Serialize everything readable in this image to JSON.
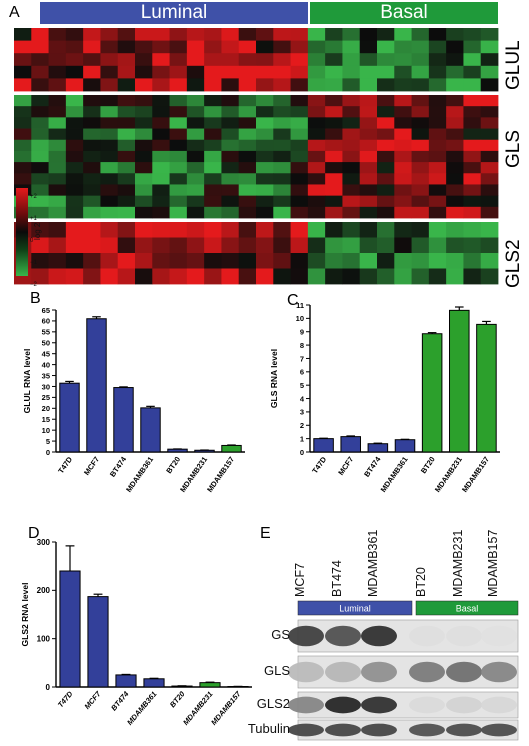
{
  "panels": {
    "a": "A",
    "b": "B",
    "c": "C",
    "d": "D",
    "e": "E"
  },
  "heatmap": {
    "groups": [
      {
        "label": "Luminal",
        "color": "#3f51a8"
      },
      {
        "label": "Basal",
        "color": "#1f9a3a"
      }
    ],
    "genes": [
      "GLUL",
      "GLS",
      "GLS2"
    ],
    "colorbar": {
      "title": "log 2",
      "ticks": [
        "+2",
        "+1",
        "0",
        "−1",
        "−2"
      ],
      "colors": {
        "high": "#e41a1c",
        "mid": "#0a0a0a",
        "low": "#39b54a"
      }
    }
  },
  "chart_data": [
    {
      "type": "bar",
      "panel": "B",
      "categories": [
        "T47D",
        "MCF7",
        "BT474",
        "MDAMB361",
        "BT20",
        "MDAMB231",
        "MDAMB157"
      ],
      "values": [
        31.5,
        61,
        29.5,
        20.2,
        1.3,
        0.8,
        3.0
      ],
      "errors": [
        0.8,
        0.9,
        0.3,
        0.7,
        0.1,
        0.1,
        0.2
      ],
      "colors": [
        "#33409a",
        "#33409a",
        "#33409a",
        "#33409a",
        "#33409a",
        "#33409a",
        "#2ca02c"
      ],
      "ylabel": "GLUL RNA level",
      "ylim": [
        0,
        65
      ],
      "yticks": [
        0,
        5,
        10,
        15,
        20,
        25,
        30,
        35,
        40,
        45,
        50,
        55,
        60,
        65
      ]
    },
    {
      "type": "bar",
      "panel": "C",
      "categories": [
        "T47D",
        "MCF7",
        "BT474",
        "MDAMB361",
        "BT20",
        "MDAMB231",
        "MDAMB157"
      ],
      "values": [
        1.0,
        1.15,
        0.62,
        0.92,
        8.85,
        10.6,
        9.55
      ],
      "errors": [
        0.03,
        0.05,
        0.04,
        0.03,
        0.08,
        0.25,
        0.22
      ],
      "colors": [
        "#33409a",
        "#33409a",
        "#33409a",
        "#33409a",
        "#2ca02c",
        "#2ca02c",
        "#2ca02c"
      ],
      "ylabel": "GLS RNA level",
      "ylim": [
        0,
        11
      ],
      "yticks": [
        0,
        1,
        2,
        3,
        4,
        5,
        6,
        7,
        8,
        9,
        10,
        11
      ]
    },
    {
      "type": "bar",
      "panel": "D",
      "categories": [
        "T47D",
        "MCF7",
        "BT474",
        "MDAMB361",
        "BT20",
        "MDAMB231",
        "MDAMB157"
      ],
      "values": [
        240,
        187,
        25,
        17,
        2,
        9,
        1
      ],
      "errors": [
        52,
        5,
        1,
        1,
        0.5,
        1,
        0.3
      ],
      "colors": [
        "#33409a",
        "#33409a",
        "#33409a",
        "#33409a",
        "#2ca02c",
        "#2ca02c",
        "#2ca02c"
      ],
      "ylabel": "GLS2 RNA level",
      "ylim": [
        0,
        300
      ],
      "yticks": [
        0,
        100,
        200,
        300
      ]
    }
  ],
  "western": {
    "cell_lines": [
      "MCF7",
      "BT474",
      "MDAMB361",
      "BT20",
      "MDAMB231",
      "MDAMB157"
    ],
    "groups": [
      {
        "label": "Luminal",
        "color": "#3f51a8"
      },
      {
        "label": "Basal",
        "color": "#1f9a3a"
      }
    ],
    "rows": [
      {
        "label": "GS",
        "intensity": [
          0.78,
          0.7,
          0.85,
          0.03,
          0.03,
          0.02
        ]
      },
      {
        "label": "GLS",
        "intensity": [
          0.2,
          0.22,
          0.4,
          0.5,
          0.55,
          0.45
        ]
      },
      {
        "label": "GLS2",
        "intensity": [
          0.45,
          0.9,
          0.85,
          0.05,
          0.08,
          0.06
        ]
      },
      {
        "label": "Tubulin",
        "intensity": [
          0.75,
          0.75,
          0.75,
          0.7,
          0.72,
          0.72
        ]
      }
    ]
  }
}
